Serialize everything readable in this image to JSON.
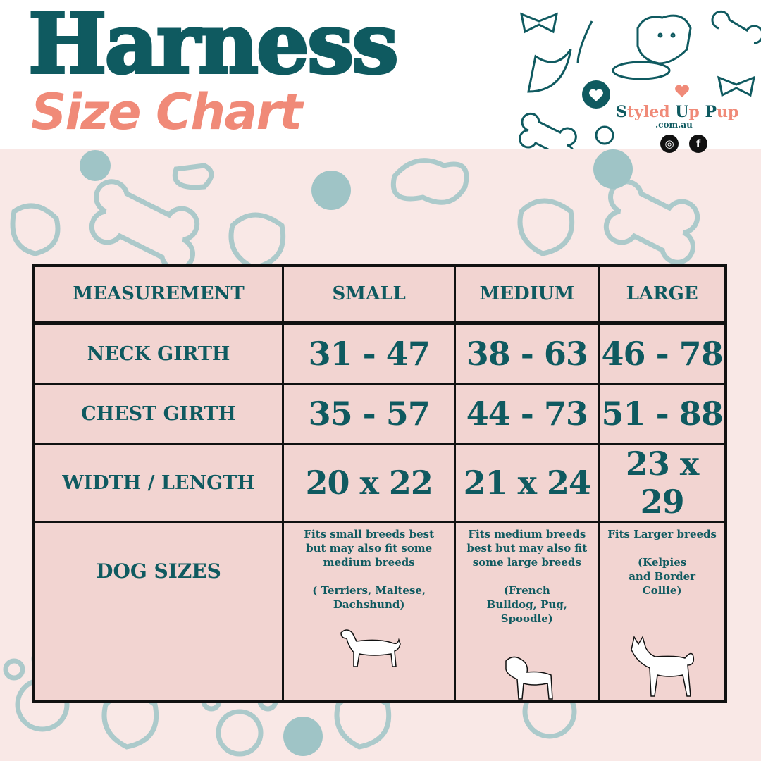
{
  "header": {
    "title": "Harness",
    "subtitle": "Size Chart"
  },
  "brand": {
    "name_first": "S",
    "name_rest": "tyled ",
    "name_u": "U",
    "name_p": "p ",
    "name_pup_p": "P",
    "name_pup_rest": "up",
    "domain": ".com.au",
    "social": [
      "instagram-icon",
      "facebook-icon"
    ]
  },
  "colors": {
    "teal": "#0f5a60",
    "salmon": "#f08a78",
    "cell": "#f2d4d1",
    "background": "#f9e8e6",
    "pattern": "#9fc4c6"
  },
  "table": {
    "headers": [
      "MEASUREMENT",
      "SMALL",
      "MEDIUM",
      "LARGE"
    ],
    "rows": [
      {
        "label": "NECK GIRTH",
        "values": [
          "31 - 47",
          "38 - 63",
          "46 - 78"
        ]
      },
      {
        "label": "CHEST GIRTH",
        "values": [
          "35 - 57",
          "44 - 73",
          "51 - 88"
        ]
      },
      {
        "label": "WIDTH / LENGTH",
        "values": [
          "20 x 22",
          "21 x 24",
          "23 x 29"
        ]
      }
    ],
    "dog_sizes": {
      "label": "DOG SIZES",
      "descriptions": [
        {
          "fit": "Fits small breeds best but may also fit some medium breeds",
          "breeds": "( Terriers, Maltese, Dachshund)",
          "icon": "dachshund-icon"
        },
        {
          "fit": "Fits medium breeds best but may also fit some large breeds",
          "breeds": "(French Bulldog, Pug, Spoodle)",
          "icon": "pug-icon"
        },
        {
          "fit": "Fits Larger breeds",
          "breeds": "(Kelpies and Border Collie)",
          "icon": "large-dog-icon"
        }
      ]
    }
  }
}
